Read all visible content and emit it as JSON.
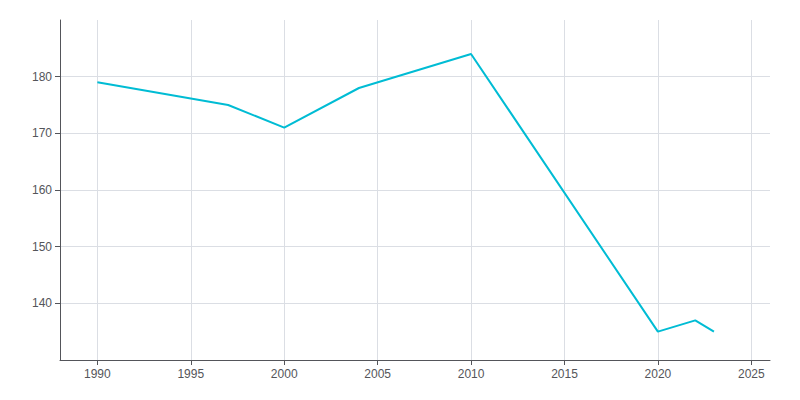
{
  "chart_data": {
    "type": "line",
    "x": [
      1990,
      1997,
      2000,
      2004,
      2010,
      2020,
      2022,
      2023
    ],
    "values": [
      179,
      175,
      171,
      178,
      184,
      135,
      137,
      135
    ],
    "color": "#00bcd4",
    "xlim": [
      1988,
      2026
    ],
    "ylim": [
      130,
      190
    ],
    "xticks": [
      1990,
      1995,
      2000,
      2005,
      2010,
      2015,
      2020,
      2025
    ],
    "yticks": [
      140,
      150,
      160,
      170,
      180
    ],
    "grid": true
  }
}
